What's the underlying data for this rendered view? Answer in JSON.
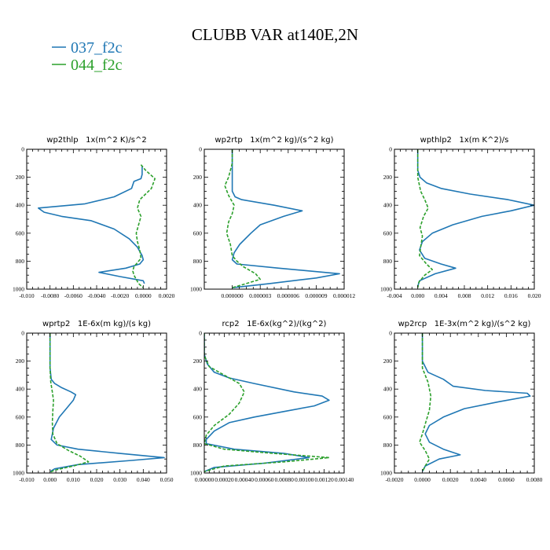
{
  "figure": {
    "title": "CLUBB VAR at140E,2N",
    "legend": [
      {
        "label": "037_f2c",
        "color": "#1f77b4"
      },
      {
        "label": "044_f2c",
        "color": "#2ca02c"
      }
    ]
  },
  "chart_data": [
    {
      "type": "line",
      "title": "wp2thlp   1x(m^2 K)/s^2",
      "xlim": [
        -0.01,
        0.002
      ],
      "ylim": [
        1000,
        0
      ],
      "x_ticks": [
        -0.01,
        -0.008,
        -0.006,
        -0.004,
        -0.002,
        0.0,
        0.002
      ],
      "x_tick_labels": [
        "-0.010",
        "-0.0080",
        "-0.0060",
        "-0.0040",
        "-0.0020",
        "0.0000",
        "0.0020"
      ],
      "y_ticks": [
        0,
        200,
        400,
        600,
        800,
        1000
      ],
      "y_tick_labels": [
        "0",
        "200",
        "400",
        "600",
        "800",
        "1000"
      ],
      "series": [
        {
          "name": "037_f2c",
          "color": "#1f77b4",
          "dash": "",
          "x": [
            -0.0001,
            -0.0001,
            -0.0002,
            -0.0008,
            -0.001,
            -0.0025,
            -0.005,
            -0.009,
            -0.0085,
            -0.007,
            -0.0045,
            -0.0025,
            -0.0012,
            -0.0005,
            -0.0001,
            0.0,
            -0.0003,
            -0.0015,
            -0.0038,
            -0.002,
            0.0,
            0.0001
          ],
          "y": [
            120,
            180,
            210,
            230,
            280,
            340,
            390,
            420,
            450,
            480,
            510,
            570,
            640,
            700,
            760,
            790,
            820,
            850,
            880,
            910,
            940,
            960
          ]
        },
        {
          "name": "044_f2c",
          "color": "#2ca02c",
          "dash": "4 2",
          "x": [
            -0.0002,
            0.0002,
            0.001,
            0.0007,
            0.0002,
            -0.0003,
            -0.0005,
            -0.0002,
            -0.0004,
            -0.0006,
            -0.0005,
            -0.0003,
            -0.0002,
            -0.0008,
            -0.0009,
            -0.0008,
            -0.0006,
            -0.0004,
            0.0
          ],
          "y": [
            110,
            150,
            210,
            280,
            320,
            360,
            420,
            480,
            540,
            600,
            660,
            720,
            780,
            840,
            870,
            900,
            930,
            960,
            990
          ]
        }
      ]
    },
    {
      "type": "line",
      "title": "wp2rtp   1x(m^2 kg)/(s^2 kg)",
      "xlim": [
        -3e-06,
        1.2e-05
      ],
      "ylim": [
        1000,
        0
      ],
      "x_ticks": [
        0.0,
        3e-06,
        6e-06,
        9e-06,
        1.2e-05
      ],
      "x_tick_labels": [
        "0.000000",
        "0.000003",
        "0.000006",
        "0.000009",
        "0.000012"
      ],
      "y_ticks": [
        0,
        200,
        400,
        600,
        800,
        1000
      ],
      "y_tick_labels": [
        "0",
        "200",
        "400",
        "600",
        "800",
        "1000"
      ],
      "series": [
        {
          "name": "037_f2c",
          "color": "#1f77b4",
          "dash": "",
          "x": [
            0.0,
            0.0,
            0.0,
            0.0,
            0.0,
            3e-07,
            1e-06,
            4.5e-06,
            7.5e-06,
            5.5e-06,
            3e-06,
            2e-06,
            8e-07,
            2e-07,
            0.0,
            5e-07,
            5e-06,
            1.15e-05,
            9e-06,
            4e-06,
            0.0
          ],
          "y": [
            0,
            80,
            150,
            220,
            300,
            340,
            360,
            400,
            440,
            480,
            540,
            600,
            680,
            740,
            790,
            820,
            850,
            890,
            920,
            960,
            990
          ]
        },
        {
          "name": "044_f2c",
          "color": "#2ca02c",
          "dash": "4 2",
          "x": [
            0.0,
            0.0,
            -4e-07,
            -8e-07,
            -4e-07,
            2e-07,
            0.0,
            -4e-07,
            -6e-07,
            -2e-07,
            0.0,
            5e-07,
            1.2e-06,
            2.5e-06,
            3e-06,
            1.5e-06,
            0.0
          ],
          "y": [
            0,
            100,
            200,
            260,
            330,
            400,
            460,
            520,
            600,
            680,
            760,
            800,
            840,
            890,
            930,
            960,
            990
          ]
        }
      ]
    },
    {
      "type": "line",
      "title": "wpthlp2   1x(m K^2)/s",
      "xlim": [
        -0.004,
        0.02
      ],
      "ylim": [
        1000,
        0
      ],
      "x_ticks": [
        -0.004,
        0.0,
        0.004,
        0.008,
        0.012,
        0.016,
        0.02
      ],
      "x_tick_labels": [
        "-0.004",
        "0.000",
        "0.004",
        "0.008",
        "0.012",
        "0.016",
        "0.020"
      ],
      "y_ticks": [
        0,
        200,
        400,
        600,
        800,
        1000
      ],
      "y_tick_labels": [
        "0",
        "200",
        "400",
        "600",
        "800",
        "1000"
      ],
      "series": [
        {
          "name": "037_f2c",
          "color": "#1f77b4",
          "dash": "",
          "x": [
            0.0,
            0.0,
            0.0,
            0.0004,
            0.0015,
            0.004,
            0.009,
            0.0155,
            0.02,
            0.016,
            0.011,
            0.006,
            0.0025,
            0.0008,
            0.0003,
            0.0012,
            0.004,
            0.0065,
            0.003,
            0.0003,
            0.0
          ],
          "y": [
            0,
            80,
            150,
            200,
            240,
            280,
            320,
            360,
            400,
            440,
            480,
            540,
            600,
            660,
            720,
            780,
            820,
            850,
            890,
            940,
            980
          ]
        },
        {
          "name": "044_f2c",
          "color": "#2ca02c",
          "dash": "4 2",
          "x": [
            0.0,
            0.0,
            0.0005,
            0.0012,
            0.0018,
            0.001,
            0.0004,
            0.0008,
            0.0005,
            0.0003,
            0.0015,
            0.0025,
            0.0012,
            0.0002,
            0.0
          ],
          "y": [
            0,
            200,
            300,
            360,
            420,
            480,
            560,
            620,
            700,
            760,
            820,
            860,
            900,
            950,
            990
          ]
        }
      ]
    },
    {
      "type": "line",
      "title": "wprtp2   1E-6x(m kg)/(s kg)",
      "xlim": [
        -0.01,
        0.05
      ],
      "ylim": [
        1000,
        0
      ],
      "x_ticks": [
        -0.01,
        0.0,
        0.01,
        0.02,
        0.03,
        0.04,
        0.05
      ],
      "x_tick_labels": [
        "-0.010",
        "0.000",
        "0.010",
        "0.020",
        "0.030",
        "0.040",
        "0.050"
      ],
      "y_ticks": [
        0,
        200,
        400,
        600,
        800,
        1000
      ],
      "y_tick_labels": [
        "0",
        "200",
        "400",
        "600",
        "800",
        "1000"
      ],
      "series": [
        {
          "name": "037_f2c",
          "color": "#1f77b4",
          "dash": "",
          "x": [
            0.0,
            0.0,
            0.0005,
            0.002,
            0.005,
            0.009,
            0.011,
            0.01,
            0.007,
            0.004,
            0.0015,
            0.0005,
            0.003,
            0.012,
            0.03,
            0.049,
            0.035,
            0.012,
            0.002,
            0.0
          ],
          "y": [
            0,
            250,
            330,
            360,
            390,
            420,
            440,
            480,
            540,
            600,
            680,
            760,
            800,
            830,
            860,
            890,
            910,
            940,
            970,
            990
          ]
        },
        {
          "name": "044_f2c",
          "color": "#2ca02c",
          "dash": "4 2",
          "x": [
            0.0,
            0.0,
            0.0003,
            0.001,
            0.0015,
            0.0012,
            0.001,
            0.0012,
            0.003,
            0.008,
            0.013,
            0.0165,
            0.01,
            0.002,
            0.0
          ],
          "y": [
            0,
            250,
            350,
            420,
            480,
            560,
            640,
            720,
            790,
            840,
            880,
            920,
            950,
            980,
            995
          ]
        }
      ]
    },
    {
      "type": "line",
      "title": "rcp2   1E-6x(kg^2)/(kg^2)",
      "xlim": [
        0.0,
        0.0014
      ],
      "ylim": [
        1000,
        0
      ],
      "x_ticks": [
        0.0,
        0.0002,
        0.0004,
        0.0006,
        0.0008,
        0.001,
        0.0012,
        0.0014
      ],
      "x_tick_labels": [
        "0.00000",
        "0.00020",
        "0.00040",
        "0.00060",
        "0.00080",
        "0.00100",
        "0.00120",
        "0.00140"
      ],
      "y_ticks": [
        0,
        200,
        400,
        600,
        800,
        1000
      ],
      "y_tick_labels": [
        "0",
        "200",
        "400",
        "600",
        "800",
        "1000"
      ],
      "series": [
        {
          "name": "037_f2c",
          "color": "#1f77b4",
          "dash": "",
          "x": [
            0.0,
            0.0,
            3e-05,
            0.0001,
            0.00025,
            0.0005,
            0.0009,
            0.00118,
            0.00125,
            0.0011,
            0.0008,
            0.0005,
            0.00025,
            0.0001,
            2e-05,
            2e-05,
            0.0003,
            0.0008,
            0.00105,
            0.0006,
            0.0001,
            0.0
          ],
          "y": [
            0,
            150,
            220,
            280,
            320,
            360,
            420,
            450,
            480,
            520,
            560,
            600,
            640,
            700,
            760,
            790,
            830,
            860,
            890,
            930,
            960,
            990
          ]
        },
        {
          "name": "044_f2c",
          "color": "#2ca02c",
          "dash": "4 2",
          "x": [
            0.0,
            0.0,
            5e-05,
            0.0002,
            0.00035,
            0.0004,
            0.00035,
            0.00025,
            0.0001,
            2e-05,
            0.0,
            0.0002,
            0.0007,
            0.00125,
            0.0008,
            0.0002,
            0.0
          ],
          "y": [
            0,
            160,
            240,
            300,
            360,
            420,
            500,
            580,
            660,
            730,
            790,
            830,
            860,
            890,
            920,
            950,
            990
          ]
        }
      ]
    },
    {
      "type": "line",
      "title": "wp2rcp   1E-3x(m^2 kg)/(s^2 kg)",
      "xlim": [
        -0.002,
        0.008
      ],
      "ylim": [
        1000,
        0
      ],
      "x_ticks": [
        -0.002,
        0.0,
        0.002,
        0.004,
        0.006,
        0.008
      ],
      "x_tick_labels": [
        "-0.0020",
        "0.0000",
        "0.0020",
        "0.0040",
        "0.0060",
        "0.0080"
      ],
      "y_ticks": [
        0,
        200,
        400,
        600,
        800,
        1000
      ],
      "y_tick_labels": [
        "0",
        "200",
        "400",
        "600",
        "800",
        "1000"
      ],
      "series": [
        {
          "name": "037_f2c",
          "color": "#1f77b4",
          "dash": "",
          "x": [
            0.0,
            0.0,
            0.0004,
            0.0015,
            0.0022,
            0.0045,
            0.0075,
            0.0077,
            0.0055,
            0.003,
            0.0015,
            0.0005,
            0.0002,
            0.0005,
            0.0015,
            0.0027,
            0.0012,
            0.0002,
            0.0
          ],
          "y": [
            0,
            200,
            280,
            330,
            380,
            410,
            430,
            450,
            490,
            540,
            600,
            660,
            720,
            780,
            830,
            870,
            900,
            950,
            990
          ]
        },
        {
          "name": "044_f2c",
          "color": "#2ca02c",
          "dash": "4 2",
          "x": [
            0.0,
            0.0,
            0.0004,
            0.0006,
            0.0005,
            0.0002,
            0.0,
            -0.0002,
            0.0002,
            0.0005,
            0.0002,
            0.0
          ],
          "y": [
            0,
            250,
            350,
            450,
            550,
            650,
            720,
            780,
            840,
            900,
            950,
            990
          ]
        }
      ]
    }
  ]
}
